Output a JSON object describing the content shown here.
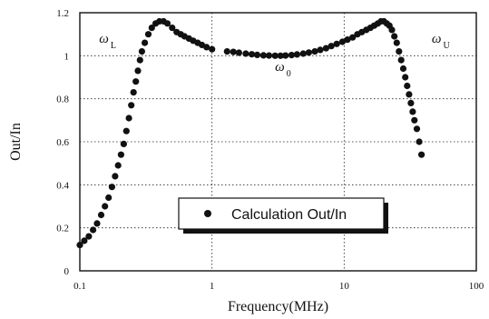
{
  "chart_data": {
    "type": "scatter",
    "title": "",
    "xlabel": "Frequency(MHz)",
    "ylabel": "Out/In",
    "xscale": "log",
    "xlim": [
      0.1,
      100
    ],
    "ylim": [
      0,
      1.2
    ],
    "x_ticks": [
      0.1,
      1,
      10,
      100
    ],
    "x_tick_labels": [
      "0.1",
      "1",
      "10",
      "100"
    ],
    "y_ticks": [
      0,
      0.2,
      0.4,
      0.6,
      0.8,
      1,
      1.2
    ],
    "y_tick_labels": [
      "0",
      "0.2",
      "0.4",
      "0.6",
      "0.8",
      "1",
      "1.2"
    ],
    "grid": true,
    "legend_position": "bottom-center",
    "series": [
      {
        "name": "Calculation Out/In",
        "marker": "filled-circle",
        "color": "#111111",
        "x": [
          0.1,
          0.108,
          0.117,
          0.126,
          0.135,
          0.145,
          0.155,
          0.165,
          0.175,
          0.185,
          0.195,
          0.205,
          0.215,
          0.225,
          0.235,
          0.245,
          0.255,
          0.265,
          0.275,
          0.285,
          0.295,
          0.31,
          0.33,
          0.35,
          0.375,
          0.4,
          0.43,
          0.46,
          0.5,
          0.54,
          0.58,
          0.62,
          0.67,
          0.72,
          0.78,
          0.84,
          0.91,
          1.0,
          1.3,
          1.45,
          1.6,
          1.8,
          2.0,
          2.2,
          2.45,
          2.7,
          3.0,
          3.3,
          3.6,
          4.0,
          4.4,
          4.9,
          5.4,
          6.0,
          6.6,
          7.3,
          8.0,
          8.8,
          9.7,
          10.6,
          11.6,
          12.6,
          13.6,
          14.7,
          15.8,
          16.9,
          18.0,
          19.0,
          20.0,
          21.0,
          22.0,
          23.0,
          24.0,
          25.0,
          26.0,
          27.0,
          28.0,
          29.0,
          30.0,
          31.0,
          32.0,
          33.0,
          34.0,
          35.5,
          37.0,
          38.5
        ],
        "y": [
          0.12,
          0.14,
          0.16,
          0.19,
          0.22,
          0.26,
          0.3,
          0.34,
          0.39,
          0.44,
          0.49,
          0.54,
          0.59,
          0.65,
          0.71,
          0.77,
          0.83,
          0.88,
          0.93,
          0.98,
          1.02,
          1.06,
          1.1,
          1.13,
          1.15,
          1.16,
          1.16,
          1.15,
          1.13,
          1.11,
          1.1,
          1.09,
          1.08,
          1.07,
          1.06,
          1.05,
          1.04,
          1.03,
          1.02,
          1.018,
          1.014,
          1.01,
          1.007,
          1.004,
          1.002,
          1.001,
          1.0,
          1.0,
          1.001,
          1.003,
          1.006,
          1.01,
          1.015,
          1.02,
          1.027,
          1.035,
          1.045,
          1.055,
          1.065,
          1.075,
          1.085,
          1.1,
          1.11,
          1.12,
          1.13,
          1.14,
          1.15,
          1.16,
          1.16,
          1.15,
          1.14,
          1.12,
          1.09,
          1.06,
          1.02,
          0.98,
          0.94,
          0.9,
          0.86,
          0.82,
          0.78,
          0.74,
          0.7,
          0.66,
          0.6,
          0.54
        ]
      }
    ],
    "annotations": [
      {
        "main": "ω",
        "sub": "L",
        "x": 0.14,
        "y": 1.06
      },
      {
        "main": "ω",
        "sub": "0",
        "x": 3.0,
        "y": 0.93
      },
      {
        "main": "ω",
        "sub": "U",
        "x": 46,
        "y": 1.06
      }
    ]
  }
}
